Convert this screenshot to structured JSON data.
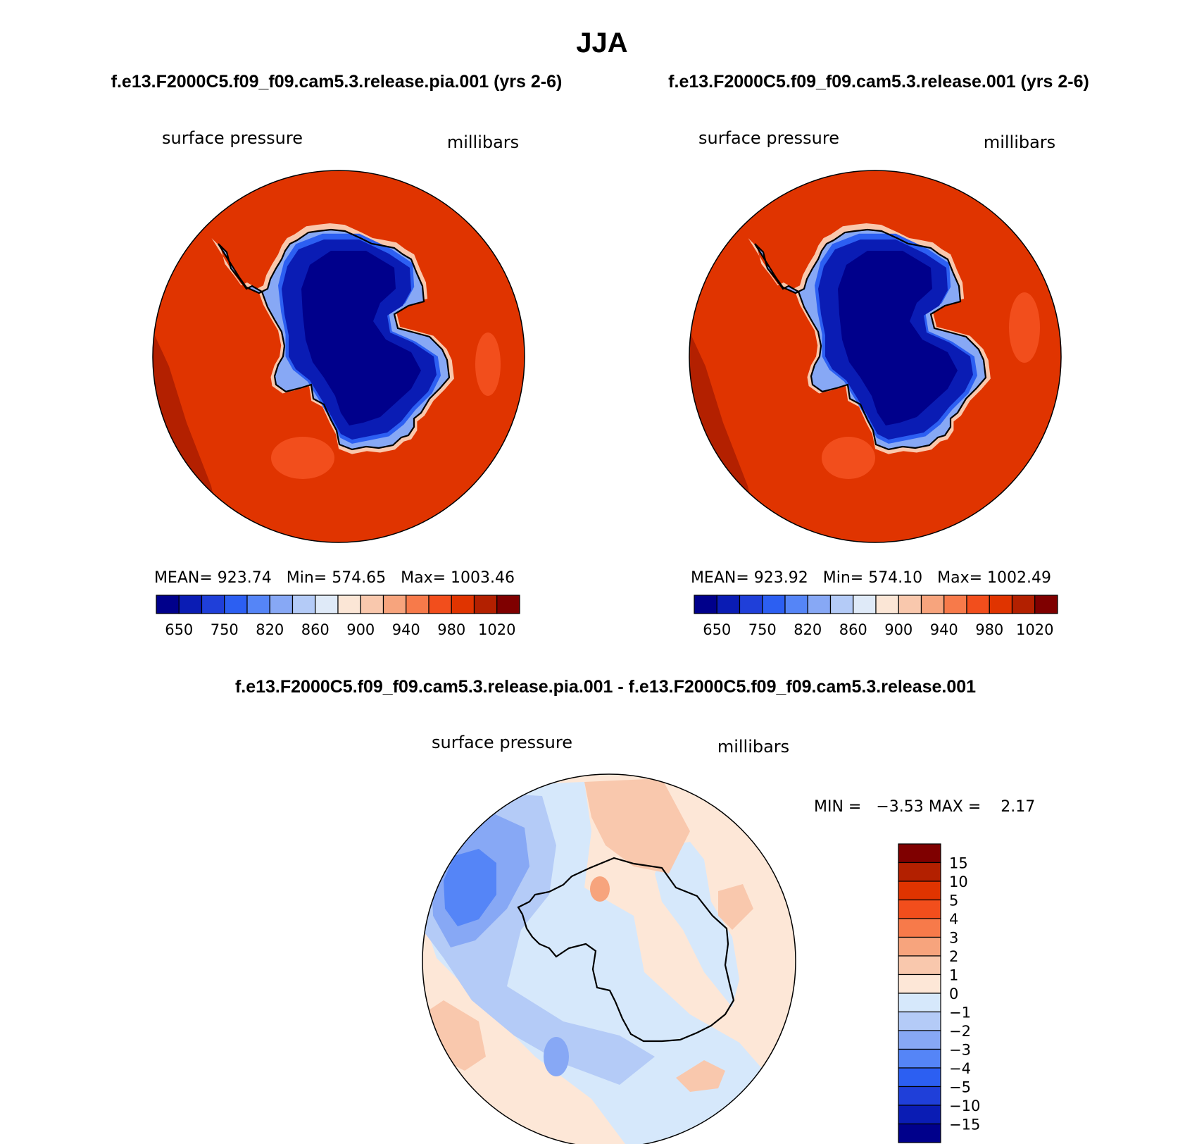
{
  "figure": {
    "season_title": "JJA",
    "colors": {
      "coast": "#000000",
      "panel_outline": "#000000"
    }
  },
  "panels": [
    {
      "case_title": "f.e13.F2000C5.f09_f09.cam5.3.release.pia.001 (yrs 2-6)",
      "variable_label": "surface pressure",
      "units_label": "millibars",
      "stats": "MEAN= 923.74   Min= 574.65   Max= 1003.46"
    },
    {
      "case_title": "f.e13.F2000C5.f09_f09.cam5.3.release.001 (yrs 2-6)",
      "variable_label": "surface pressure",
      "units_label": "millibars",
      "stats": "MEAN= 923.92   Min= 574.10   Max= 1002.49"
    },
    {
      "case_title": "f.e13.F2000C5.f09_f09.cam5.3.release.pia.001 - f.e13.F2000C5.f09_f09.cam5.3.release.001",
      "variable_label": "surface pressure",
      "units_label": "millibars",
      "stats": "MIN =   −3.53 MAX =    2.17"
    }
  ],
  "chart_data": [
    {
      "type": "heatmap",
      "projection": "south polar stereographic",
      "title": "surface pressure",
      "units": "millibars",
      "stats": {
        "mean": 923.74,
        "min": 574.65,
        "max": 1003.46
      },
      "colorbar": {
        "orientation": "horizontal",
        "tick_labels": [
          "650",
          "750",
          "820",
          "860",
          "900",
          "940",
          "980",
          "1020"
        ],
        "colors": [
          "#00008b",
          "#0a1cb4",
          "#1f3fd9",
          "#2c5ff2",
          "#5585f7",
          "#87a8f5",
          "#b4cbf7",
          "#dfeaf8",
          "#fbe6d6",
          "#f9c8ad",
          "#f7a47d",
          "#f77a4a",
          "#f24e1c",
          "#e03400",
          "#b32000",
          "#7f0000"
        ]
      }
    },
    {
      "type": "heatmap",
      "projection": "south polar stereographic",
      "title": "surface pressure",
      "units": "millibars",
      "stats": {
        "mean": 923.92,
        "min": 574.1,
        "max": 1002.49
      },
      "colorbar": {
        "orientation": "horizontal",
        "tick_labels": [
          "650",
          "750",
          "820",
          "860",
          "900",
          "940",
          "980",
          "1020"
        ],
        "colors": [
          "#00008b",
          "#0a1cb4",
          "#1f3fd9",
          "#2c5ff2",
          "#5585f7",
          "#87a8f5",
          "#b4cbf7",
          "#dfeaf8",
          "#fbe6d6",
          "#f9c8ad",
          "#f7a47d",
          "#f77a4a",
          "#f24e1c",
          "#e03400",
          "#b32000",
          "#7f0000"
        ]
      }
    },
    {
      "type": "heatmap",
      "projection": "south polar stereographic",
      "title": "surface pressure",
      "units": "millibars",
      "stats": {
        "min": -3.53,
        "max": 2.17
      },
      "colorbar": {
        "orientation": "vertical",
        "tick_labels": [
          "15",
          "10",
          "5",
          "4",
          "3",
          "2",
          "1",
          "0",
          "−1",
          "−2",
          "−3",
          "−4",
          "−5",
          "−10",
          "−15"
        ],
        "colors": [
          "#7f0000",
          "#b32000",
          "#e03400",
          "#f24e1c",
          "#f77a4a",
          "#f7a47d",
          "#f9c8ad",
          "#fde7d7",
          "#d6e8fb",
          "#b4cbf7",
          "#87a8f5",
          "#5585f7",
          "#2c5ff2",
          "#1f3fd9",
          "#0a1cb4",
          "#00008b"
        ]
      }
    }
  ]
}
